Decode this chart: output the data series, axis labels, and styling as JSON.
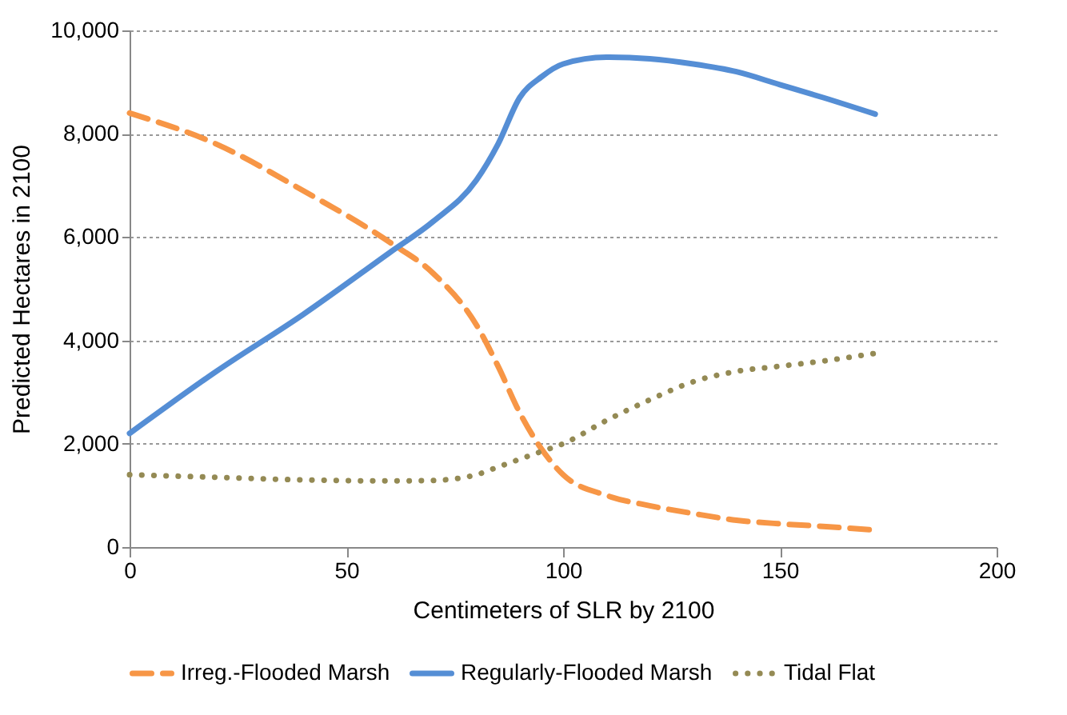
{
  "chart_data": {
    "type": "line",
    "xlabel": "Centimeters of SLR by 2100",
    "ylabel": "Predicted Hectares in 2100",
    "x": [
      0,
      20,
      40,
      60,
      70,
      80,
      85,
      90,
      95,
      100,
      110,
      120,
      130,
      140,
      150,
      160,
      172
    ],
    "series": [
      {
        "name": "Irreg.-Flooded Marsh",
        "color": "#f79646",
        "line_style": "dashed",
        "values": [
          8400,
          7800,
          6900,
          5900,
          5300,
          4300,
          3500,
          2600,
          1900,
          1400,
          1000,
          800,
          650,
          520,
          450,
          400,
          330
        ]
      },
      {
        "name": "Regularly-Flooded Marsh",
        "color": "#558ed5",
        "line_style": "solid",
        "values": [
          2200,
          3400,
          4500,
          5700,
          6300,
          7100,
          7800,
          8700,
          9100,
          9350,
          9480,
          9450,
          9350,
          9200,
          8950,
          8700,
          8380
        ]
      },
      {
        "name": "Tidal Flat",
        "color": "#948a54",
        "line_style": "dotted",
        "values": [
          1400,
          1350,
          1300,
          1280,
          1290,
          1400,
          1550,
          1700,
          1850,
          2000,
          2450,
          2850,
          3200,
          3400,
          3500,
          3600,
          3750
        ]
      }
    ],
    "xlim": [
      0,
      200
    ],
    "xticks": [
      0,
      50,
      100,
      150,
      200
    ],
    "ylim": [
      0,
      10000
    ],
    "yticks": [
      0,
      {
        "value": 2000,
        "label": "2,000"
      },
      {
        "value": 4000,
        "label": "4,000"
      },
      {
        "value": 6000,
        "label": "6,000"
      },
      {
        "value": 8000,
        "label": "8,000"
      },
      {
        "value": 10000,
        "label": "10,000"
      }
    ],
    "grid": "y",
    "legend": "bottom",
    "marker": "none"
  }
}
